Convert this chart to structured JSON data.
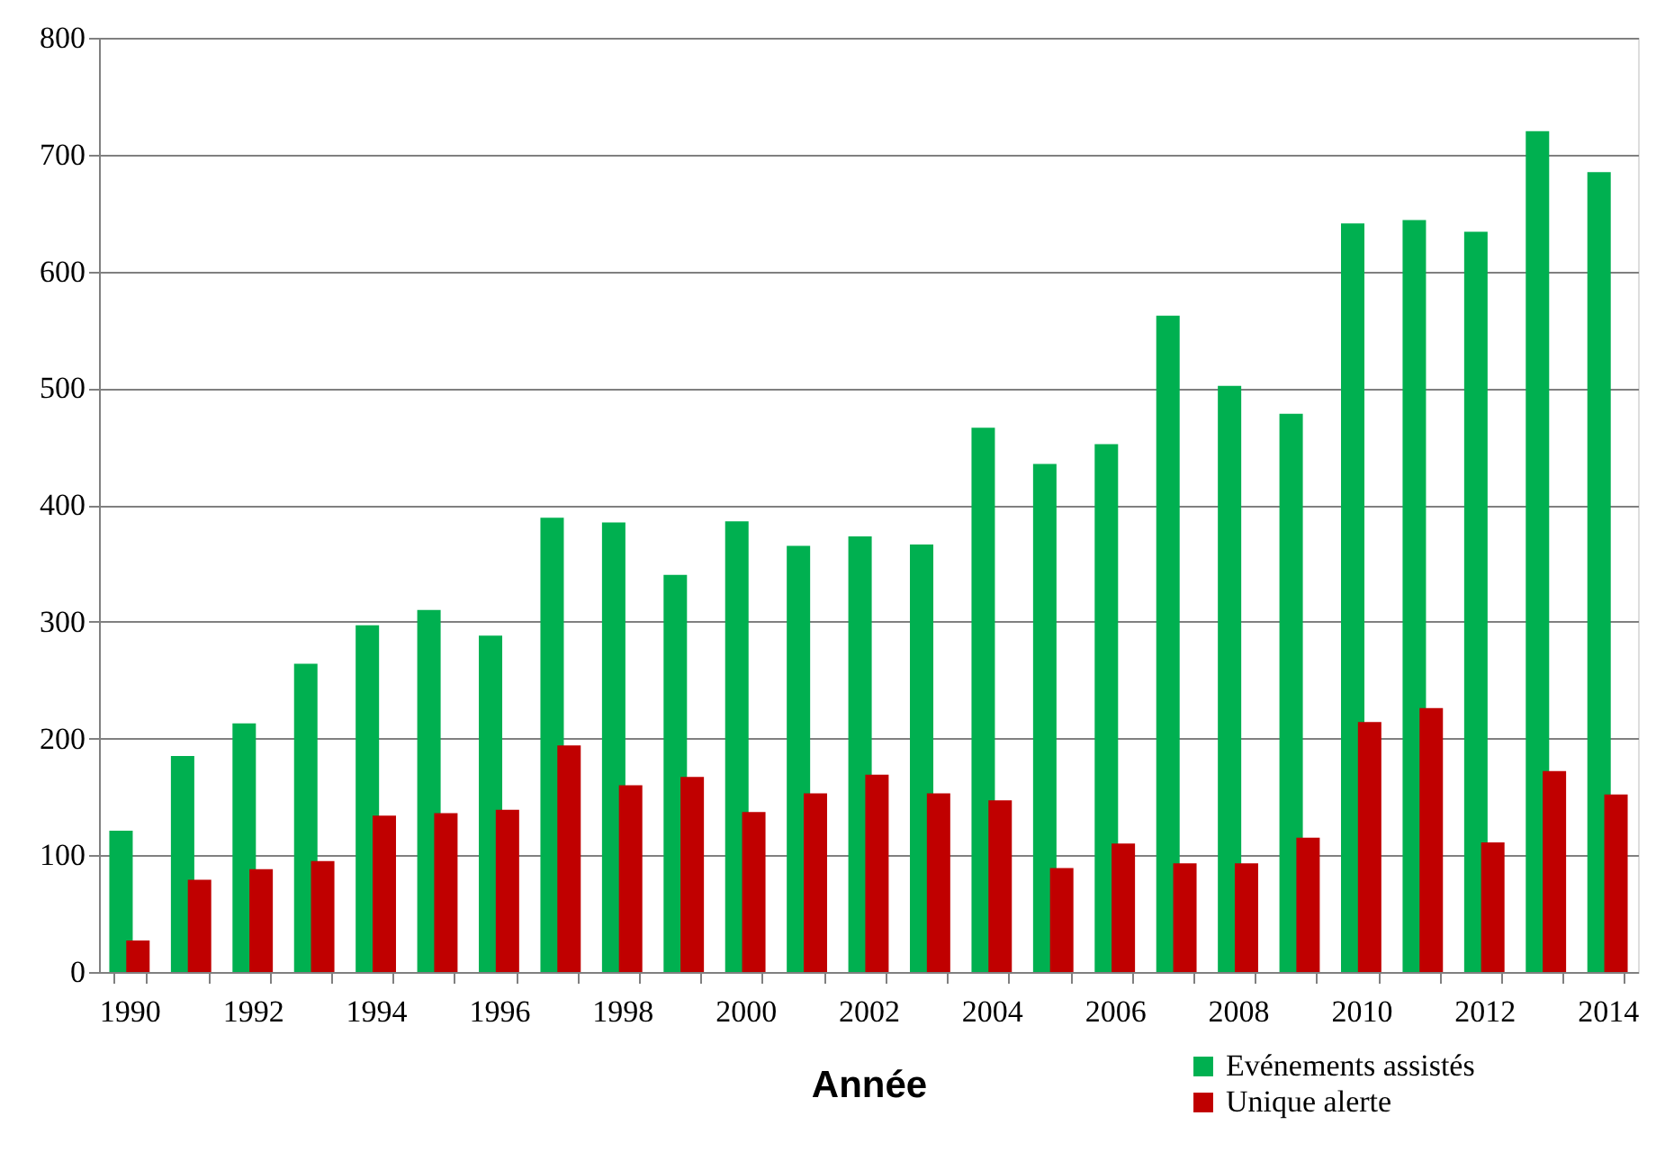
{
  "chart_data": {
    "type": "bar",
    "xlabel": "Année",
    "categories": [
      "1990",
      null,
      "1992",
      null,
      "1994",
      null,
      "1996",
      null,
      "1998",
      null,
      "2000",
      null,
      "2002",
      null,
      "2004",
      null,
      "2006",
      null,
      "2008",
      null,
      "2010",
      null,
      "2012",
      null,
      "2014"
    ],
    "series": [
      {
        "name": "Evénements assistés",
        "color": "#00b050",
        "values": [
          121,
          185,
          213,
          264,
          297,
          310,
          288,
          389,
          385,
          340,
          386,
          365,
          373,
          366,
          466,
          435,
          452,
          562,
          502,
          478,
          641,
          644,
          634,
          720,
          685
        ]
      },
      {
        "name": "Unique alerte",
        "color": "#c00000",
        "values": [
          27,
          79,
          88,
          95,
          134,
          136,
          139,
          194,
          160,
          167,
          137,
          153,
          169,
          153,
          147,
          89,
          110,
          93,
          93,
          115,
          214,
          226,
          111,
          172,
          152
        ]
      }
    ],
    "ylim": [
      0,
      800
    ],
    "yticks": [
      0,
      100,
      200,
      300,
      400,
      500,
      600,
      700,
      800
    ],
    "grid": "y",
    "legend": "bottom right"
  }
}
